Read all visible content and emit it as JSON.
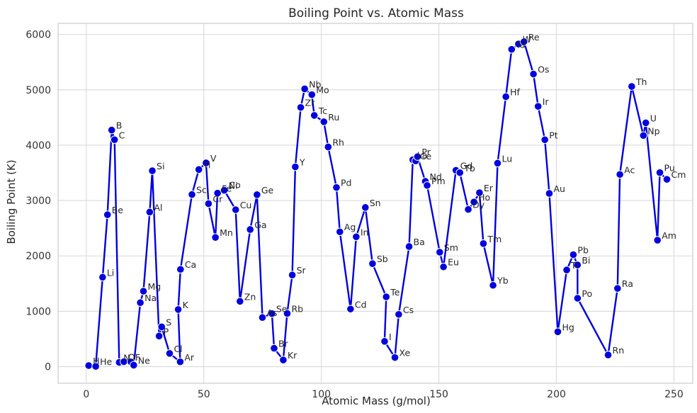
{
  "chart_data": {
    "type": "line",
    "title": "Boiling Point vs. Atomic Mass",
    "xlabel": "Atomic Mass (g/mol)",
    "ylabel": "Boiling Point (K)",
    "xlim": [
      -12,
      258
    ],
    "ylim": [
      -300,
      6200
    ],
    "xticks": [
      0,
      50,
      100,
      150,
      200,
      250
    ],
    "yticks": [
      0,
      1000,
      2000,
      3000,
      4000,
      5000,
      6000
    ],
    "grid": true,
    "line_color": "#0000e0",
    "marker_color": "#0000e0",
    "points": [
      {
        "label": "H",
        "x": 1.008,
        "y": 20
      },
      {
        "label": "He",
        "x": 4.003,
        "y": 4
      },
      {
        "label": "Li",
        "x": 6.94,
        "y": 1615
      },
      {
        "label": "Be",
        "x": 9.012,
        "y": 2744
      },
      {
        "label": "B",
        "x": 10.81,
        "y": 4273
      },
      {
        "label": "C",
        "x": 12.011,
        "y": 4098
      },
      {
        "label": "N",
        "x": 14.007,
        "y": 77
      },
      {
        "label": "O",
        "x": 15.999,
        "y": 90
      },
      {
        "label": "F",
        "x": 18.998,
        "y": 85
      },
      {
        "label": "Ne",
        "x": 20.18,
        "y": 27
      },
      {
        "label": "Na",
        "x": 22.99,
        "y": 1156
      },
      {
        "label": "Mg",
        "x": 24.305,
        "y": 1363
      },
      {
        "label": "Al",
        "x": 26.982,
        "y": 2792
      },
      {
        "label": "Si",
        "x": 28.085,
        "y": 3538
      },
      {
        "label": "P",
        "x": 30.974,
        "y": 553
      },
      {
        "label": "S",
        "x": 32.06,
        "y": 718
      },
      {
        "label": "Cl",
        "x": 35.45,
        "y": 239
      },
      {
        "label": "Ar",
        "x": 39.948,
        "y": 87
      },
      {
        "label": "K",
        "x": 39.098,
        "y": 1032
      },
      {
        "label": "Ca",
        "x": 40.078,
        "y": 1757
      },
      {
        "label": "Sc",
        "x": 44.956,
        "y": 3109
      },
      {
        "label": "Ti",
        "x": 47.867,
        "y": 3560
      },
      {
        "label": "V",
        "x": 50.942,
        "y": 3680
      },
      {
        "label": "Cr",
        "x": 51.996,
        "y": 2944
      },
      {
        "label": "Mn",
        "x": 54.938,
        "y": 2334
      },
      {
        "label": "Fe",
        "x": 55.845,
        "y": 3134
      },
      {
        "label": "Co",
        "x": 58.933,
        "y": 3200
      },
      {
        "label": "Ni",
        "x": 58.693,
        "y": 3186
      },
      {
        "label": "Cu",
        "x": 63.546,
        "y": 2835
      },
      {
        "label": "Zn",
        "x": 65.38,
        "y": 1180
      },
      {
        "label": "Ga",
        "x": 69.723,
        "y": 2477
      },
      {
        "label": "Ge",
        "x": 72.63,
        "y": 3106
      },
      {
        "label": "As",
        "x": 74.922,
        "y": 887
      },
      {
        "label": "Se",
        "x": 78.971,
        "y": 958
      },
      {
        "label": "Br",
        "x": 79.904,
        "y": 332
      },
      {
        "label": "Kr",
        "x": 83.798,
        "y": 120
      },
      {
        "label": "Rb",
        "x": 85.468,
        "y": 961
      },
      {
        "label": "Sr",
        "x": 87.62,
        "y": 1655
      },
      {
        "label": "Y",
        "x": 88.906,
        "y": 3609
      },
      {
        "label": "Zr",
        "x": 91.224,
        "y": 4682
      },
      {
        "label": "Nb",
        "x": 92.906,
        "y": 5017
      },
      {
        "label": "Mo",
        "x": 95.95,
        "y": 4912
      },
      {
        "label": "Tc",
        "x": 97,
        "y": 4538
      },
      {
        "label": "Ru",
        "x": 101.07,
        "y": 4423
      },
      {
        "label": "Rh",
        "x": 102.91,
        "y": 3968
      },
      {
        "label": "Pd",
        "x": 106.42,
        "y": 3236
      },
      {
        "label": "Ag",
        "x": 107.87,
        "y": 2435
      },
      {
        "label": "Cd",
        "x": 112.41,
        "y": 1040
      },
      {
        "label": "In",
        "x": 114.82,
        "y": 2345
      },
      {
        "label": "Sn",
        "x": 118.71,
        "y": 2875
      },
      {
        "label": "Sb",
        "x": 121.76,
        "y": 1860
      },
      {
        "label": "Te",
        "x": 127.6,
        "y": 1261
      },
      {
        "label": "I",
        "x": 126.9,
        "y": 457
      },
      {
        "label": "Xe",
        "x": 131.29,
        "y": 165
      },
      {
        "label": "Cs",
        "x": 132.91,
        "y": 944
      },
      {
        "label": "Ba",
        "x": 137.33,
        "y": 2170
      },
      {
        "label": "La",
        "x": 138.91,
        "y": 3737
      },
      {
        "label": "Ce",
        "x": 140.12,
        "y": 3716
      },
      {
        "label": "Pr",
        "x": 140.91,
        "y": 3793
      },
      {
        "label": "Nd",
        "x": 144.24,
        "y": 3347
      },
      {
        "label": "Pm",
        "x": 145,
        "y": 3273
      },
      {
        "label": "Sm",
        "x": 150.36,
        "y": 2067
      },
      {
        "label": "Eu",
        "x": 151.96,
        "y": 1802
      },
      {
        "label": "Gd",
        "x": 157.25,
        "y": 3546
      },
      {
        "label": "Tb",
        "x": 158.93,
        "y": 3503
      },
      {
        "label": "Dy",
        "x": 162.5,
        "y": 2840
      },
      {
        "label": "Ho",
        "x": 164.93,
        "y": 2973
      },
      {
        "label": "Er",
        "x": 167.26,
        "y": 3141
      },
      {
        "label": "Tm",
        "x": 168.93,
        "y": 2223
      },
      {
        "label": "Yb",
        "x": 173.05,
        "y": 1469
      },
      {
        "label": "Lu",
        "x": 174.97,
        "y": 3675
      },
      {
        "label": "Hf",
        "x": 178.49,
        "y": 4876
      },
      {
        "label": "Ta",
        "x": 180.95,
        "y": 5731
      },
      {
        "label": "W",
        "x": 183.84,
        "y": 5828
      },
      {
        "label": "Re",
        "x": 186.21,
        "y": 5869
      },
      {
        "label": "Os",
        "x": 190.23,
        "y": 5285
      },
      {
        "label": "Ir",
        "x": 192.22,
        "y": 4701
      },
      {
        "label": "Pt",
        "x": 195.08,
        "y": 4098
      },
      {
        "label": "Au",
        "x": 196.97,
        "y": 3129
      },
      {
        "label": "Hg",
        "x": 200.59,
        "y": 630
      },
      {
        "label": "Tl",
        "x": 204.38,
        "y": 1746
      },
      {
        "label": "Pb",
        "x": 207.2,
        "y": 2022
      },
      {
        "label": "Bi",
        "x": 208.98,
        "y": 1837
      },
      {
        "label": "Po",
        "x": 209,
        "y": 1235
      },
      {
        "label": "Rn",
        "x": 222,
        "y": 211
      },
      {
        "label": "Ra",
        "x": 226,
        "y": 1413
      },
      {
        "label": "Ac",
        "x": 227,
        "y": 3471
      },
      {
        "label": "Th",
        "x": 232.04,
        "y": 5061
      },
      {
        "label": "Np",
        "x": 237,
        "y": 4175
      },
      {
        "label": "U",
        "x": 238.03,
        "y": 4404
      },
      {
        "label": "Am",
        "x": 243,
        "y": 2284
      },
      {
        "label": "Pu",
        "x": 244,
        "y": 3505
      },
      {
        "label": "Cm",
        "x": 247,
        "y": 3383
      }
    ]
  }
}
